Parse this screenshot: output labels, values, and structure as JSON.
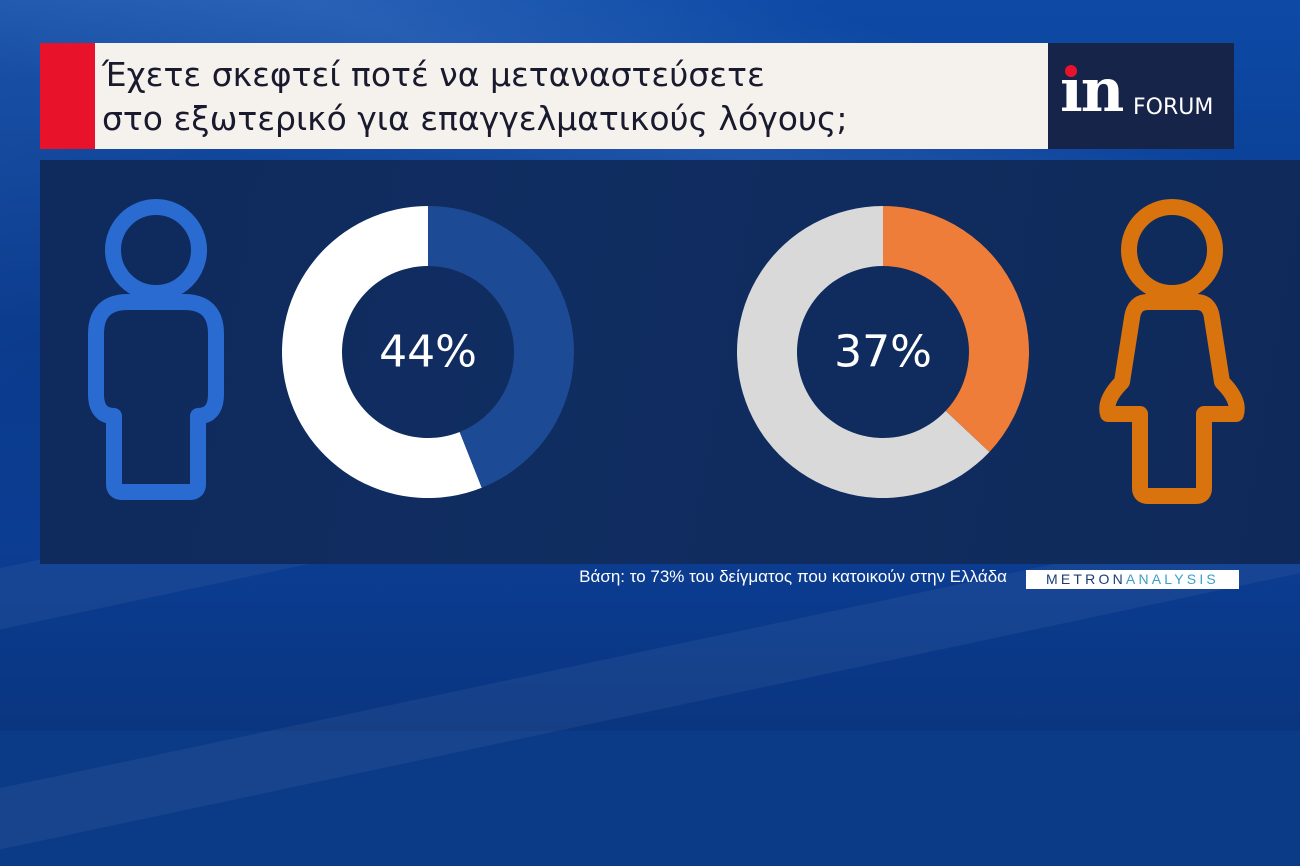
{
  "header": {
    "title_line1": "Έχετε σκεφτεί ποτέ να μεταναστεύσετε",
    "title_line2": "στο εξωτερικό για επαγγελματικούς λόγους;"
  },
  "logo": {
    "in_text": "in",
    "forum_text": "FORUM"
  },
  "chart_data": {
    "type": "pie",
    "variant": "donut",
    "series": [
      {
        "name": "",
        "icon": "male-person-icon",
        "value": 44,
        "label": "44%",
        "color": "#1c4a94",
        "remainder_color": "#ffffff"
      },
      {
        "name": "",
        "icon": "female-person-icon",
        "value": 37,
        "label": "37%",
        "color": "#ef7d3a",
        "remainder_color": "#d9d9d9"
      }
    ],
    "icon_colors": {
      "male": "#2a6bd1",
      "female": "#d9730e"
    }
  },
  "footer": {
    "note": "Βάση: το 73% του δείγματος που κατοικούν στην Ελλάδα",
    "brand_part1": "METRON",
    "brand_part2": "ANALYSIS"
  }
}
